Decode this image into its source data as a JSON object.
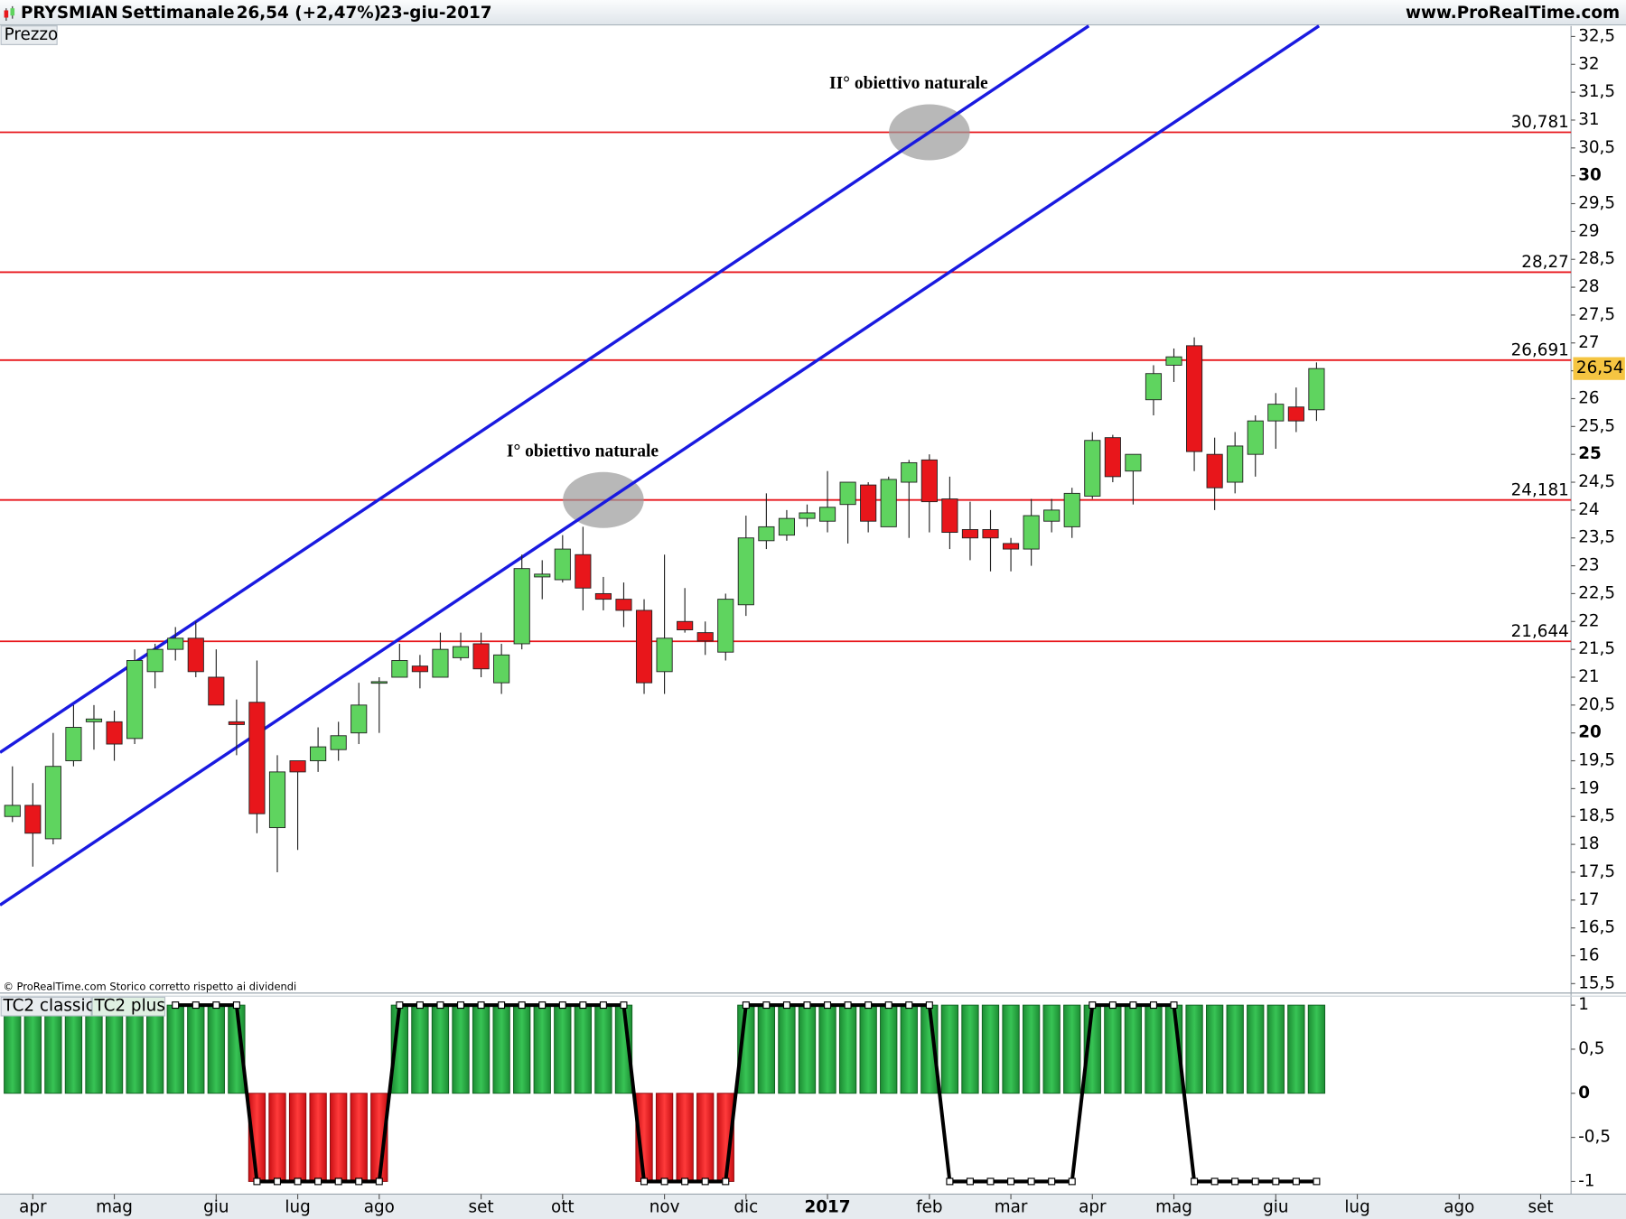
{
  "header": {
    "symbol": "PRYSMIAN",
    "period": "Settimanale",
    "quote": "26,54 (+2,47%)",
    "date": "23-giu-2017",
    "site": "www.ProRealTime.com"
  },
  "footer": "© ProRealTime.com  Storico corretto rispetto ai dividendi",
  "chart_data": [
    {
      "type": "candlestick",
      "title": "Prezzo",
      "open": [
        18.5,
        18.7,
        18.1,
        19.5,
        20.2,
        20.2,
        19.9,
        21.1,
        21.5,
        21.7,
        21.0,
        20.2,
        20.55,
        18.3,
        19.5,
        19.5,
        19.7,
        20.0,
        20.9,
        21.0,
        21.2,
        21.0,
        21.35,
        21.6,
        20.9,
        21.6,
        22.8,
        22.75,
        23.2,
        22.5,
        22.4,
        22.2,
        21.1,
        22.0,
        21.8,
        21.45,
        22.3,
        23.45,
        23.55,
        23.85,
        23.8,
        24.1,
        24.45,
        23.7,
        24.5,
        24.9,
        24.2,
        23.65,
        23.65,
        23.4,
        23.3,
        23.8,
        23.7,
        24.25,
        25.3,
        24.7,
        25.98,
        26.6,
        26.95,
        25.0,
        24.5,
        25.0,
        25.6,
        25.85,
        25.8
      ],
      "high": [
        19.4,
        19.1,
        20.0,
        20.5,
        20.5,
        20.4,
        21.5,
        21.6,
        21.9,
        22.0,
        21.5,
        20.6,
        21.3,
        19.6,
        19.5,
        20.1,
        20.2,
        20.9,
        21.0,
        21.6,
        21.4,
        21.8,
        21.8,
        21.8,
        21.6,
        23.2,
        23.1,
        23.55,
        23.7,
        22.8,
        22.7,
        22.4,
        23.2,
        22.6,
        22.0,
        22.5,
        23.9,
        24.3,
        24.0,
        24.1,
        24.7,
        24.5,
        24.5,
        24.6,
        24.9,
        25.0,
        24.6,
        24.15,
        24.0,
        23.5,
        24.2,
        24.2,
        24.4,
        25.4,
        25.35,
        25.0,
        26.6,
        26.9,
        27.1,
        25.3,
        25.4,
        25.7,
        26.1,
        26.2,
        26.65
      ],
      "low": [
        18.4,
        17.6,
        18.0,
        19.4,
        19.7,
        19.5,
        19.8,
        20.8,
        21.3,
        21.0,
        20.5,
        19.6,
        18.2,
        17.5,
        17.9,
        19.3,
        19.5,
        19.8,
        20.0,
        21.0,
        20.8,
        21.0,
        21.3,
        21.0,
        20.7,
        21.5,
        22.4,
        22.7,
        22.2,
        22.2,
        21.9,
        20.7,
        20.7,
        21.8,
        21.4,
        21.3,
        22.1,
        23.3,
        23.45,
        23.7,
        23.6,
        23.4,
        23.6,
        23.7,
        23.5,
        23.6,
        23.3,
        23.1,
        22.9,
        22.9,
        23.0,
        23.6,
        23.5,
        24.2,
        24.5,
        24.1,
        25.7,
        26.3,
        24.7,
        24.0,
        24.3,
        24.6,
        25.1,
        25.4,
        25.6
      ],
      "close": [
        18.7,
        18.2,
        19.4,
        20.1,
        20.25,
        19.8,
        21.3,
        21.5,
        21.7,
        21.1,
        20.5,
        20.15,
        18.55,
        19.3,
        19.3,
        19.75,
        19.95,
        20.5,
        20.92,
        21.3,
        21.1,
        21.5,
        21.55,
        21.15,
        21.4,
        22.95,
        22.85,
        23.3,
        22.6,
        22.4,
        22.2,
        20.9,
        21.7,
        21.85,
        21.65,
        22.4,
        23.5,
        23.7,
        23.85,
        23.95,
        24.05,
        24.5,
        23.8,
        24.55,
        24.85,
        24.15,
        23.6,
        23.5,
        23.5,
        23.3,
        23.9,
        24.0,
        24.3,
        25.25,
        24.6,
        25.0,
        26.45,
        26.75,
        25.05,
        24.4,
        25.15,
        25.6,
        25.9,
        25.6,
        26.54
      ],
      "up_color": "#5fd45f",
      "down_color": "#e8161b",
      "last_price": {
        "value": 26.54,
        "label": "26,54"
      },
      "levels": [
        {
          "value": 30.781,
          "label": "30,781"
        },
        {
          "value": 28.27,
          "label": "28,27"
        },
        {
          "value": 26.691,
          "label": "26,691"
        },
        {
          "value": 24.181,
          "label": "24,181"
        },
        {
          "value": 21.644,
          "label": "21,644"
        }
      ],
      "level_color": "#e8161b",
      "trendlines": [
        {
          "x": [
            -0.61,
            52.82
          ],
          "y": [
            19.65,
            32.69
          ]
        },
        {
          "x": [
            -0.61,
            64.12
          ],
          "y": [
            16.91,
            32.69
          ]
        }
      ],
      "trendline_color": "#1a1ae0",
      "annotations": [
        {
          "text": "II° obiettivo naturale",
          "x": 45,
          "y": 30.781
        },
        {
          "text": "I° obiettivo naturale",
          "x": 29,
          "y": 24.181
        }
      ],
      "xlim": [
        -0.61,
        76.49
      ],
      "xticks": [
        {
          "value": 1,
          "label": "apr"
        },
        {
          "value": 5,
          "label": "mag"
        },
        {
          "value": 10,
          "label": "giu"
        },
        {
          "value": 14,
          "label": "lug"
        },
        {
          "value": 18,
          "label": "ago"
        },
        {
          "value": 23,
          "label": "set"
        },
        {
          "value": 27,
          "label": "ott"
        },
        {
          "value": 32,
          "label": "nov"
        },
        {
          "value": 36,
          "label": "dic"
        },
        {
          "value": 40,
          "label": "2017"
        },
        {
          "value": 45,
          "label": "feb"
        },
        {
          "value": 49,
          "label": "mar"
        },
        {
          "value": 53,
          "label": "apr"
        },
        {
          "value": 57,
          "label": "mag"
        },
        {
          "value": 62,
          "label": "giu"
        },
        {
          "value": 66,
          "label": "lug"
        },
        {
          "value": 71,
          "label": "ago"
        },
        {
          "value": 75,
          "label": "set"
        }
      ],
      "ylim": [
        15.35,
        32.69
      ],
      "yticks": [
        {
          "value": 32.5,
          "label": "32,5"
        },
        32,
        {
          "value": 31.5,
          "label": "31,5"
        },
        31,
        {
          "value": 30.5,
          "label": "30,5"
        },
        30,
        {
          "value": 29.5,
          "label": "29,5"
        },
        29,
        {
          "value": 28.5,
          "label": "28,5"
        },
        28,
        {
          "value": 27.5,
          "label": "27,5"
        },
        27,
        {
          "value": 26.5,
          "label": "26,5"
        },
        26,
        {
          "value": 25.5,
          "label": "25,5"
        },
        25,
        {
          "value": 24.5,
          "label": "24,5"
        },
        24,
        {
          "value": 23.5,
          "label": "23,5"
        },
        23,
        {
          "value": 22.5,
          "label": "22,5"
        },
        22,
        {
          "value": 21.5,
          "label": "21,5"
        },
        21,
        {
          "value": 20.5,
          "label": "20,5"
        },
        20,
        {
          "value": 19.5,
          "label": "19,5"
        },
        19,
        {
          "value": 18.5,
          "label": "18,5"
        },
        18,
        {
          "value": 17.5,
          "label": "17,5"
        },
        17,
        {
          "value": 16.5,
          "label": "16,5"
        },
        16,
        {
          "value": 15.5,
          "label": "15,5"
        }
      ]
    },
    {
      "type": "indicator",
      "series": [
        {
          "name": "TC2 classic",
          "type": "bar",
          "color": "#22a33d",
          "down_color": "#e8161b",
          "values": [
            1,
            1,
            1,
            1,
            1,
            1,
            1,
            1,
            1,
            1,
            1,
            1,
            -1,
            -1,
            -1,
            -1,
            -1,
            -1,
            -1,
            1,
            1,
            1,
            1,
            1,
            1,
            1,
            1,
            1,
            1,
            1,
            1,
            -1,
            -1,
            -1,
            -1,
            -1,
            1,
            1,
            1,
            1,
            1,
            1,
            1,
            1,
            1,
            1,
            1,
            1,
            1,
            1,
            1,
            1,
            1,
            1,
            1,
            1,
            1,
            1,
            1,
            1,
            1,
            1,
            1,
            1,
            1
          ]
        },
        {
          "name": "TC2 plus",
          "type": "line",
          "color": "#000000",
          "values": [
            null,
            null,
            null,
            null,
            null,
            null,
            null,
            null,
            1,
            1,
            1,
            1,
            -1,
            -1,
            -1,
            -1,
            -1,
            -1,
            -1,
            1,
            1,
            1,
            1,
            1,
            1,
            1,
            1,
            1,
            1,
            1,
            1,
            -1,
            -1,
            -1,
            -1,
            -1,
            1,
            1,
            1,
            1,
            1,
            1,
            1,
            1,
            1,
            1,
            -1,
            -1,
            -1,
            -1,
            -1,
            -1,
            -1,
            1,
            1,
            1,
            1,
            1,
            -1,
            -1,
            -1,
            -1,
            -1,
            -1,
            -1
          ]
        }
      ],
      "ylim": [
        -1.12,
        1.09
      ],
      "yticks": [
        1,
        {
          "value": 0.5,
          "label": "0,5"
        },
        0,
        {
          "value": -0.5,
          "label": "-0,5"
        },
        -1
      ]
    }
  ]
}
